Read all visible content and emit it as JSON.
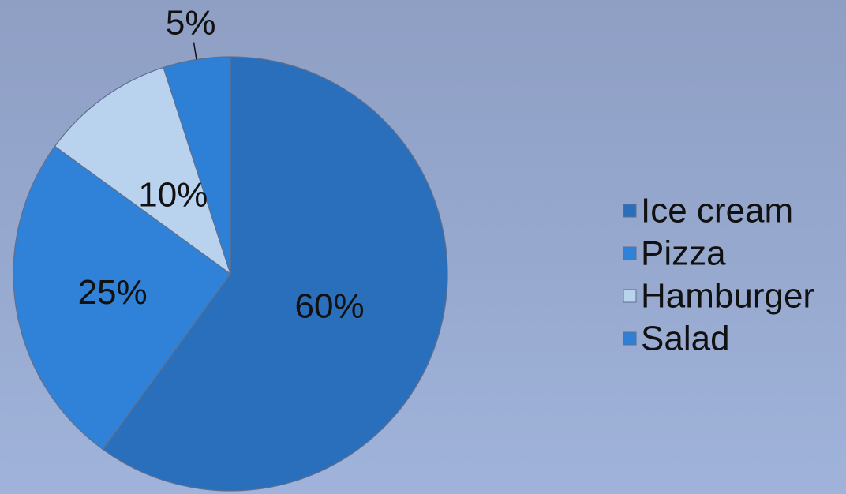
{
  "chart_data": {
    "type": "pie",
    "categories": [
      "Ice cream",
      "Pizza",
      "Hamburger",
      "Salad"
    ],
    "values": [
      60,
      25,
      10,
      5
    ],
    "labels": [
      "60%",
      "25%",
      "10%",
      "5%"
    ],
    "colors": [
      "#2a6fbc",
      "#2f82d8",
      "#b9d3ef",
      "#2e7fd6"
    ],
    "legend_position": "right",
    "start_angle_deg": 0,
    "direction": "clockwise"
  }
}
